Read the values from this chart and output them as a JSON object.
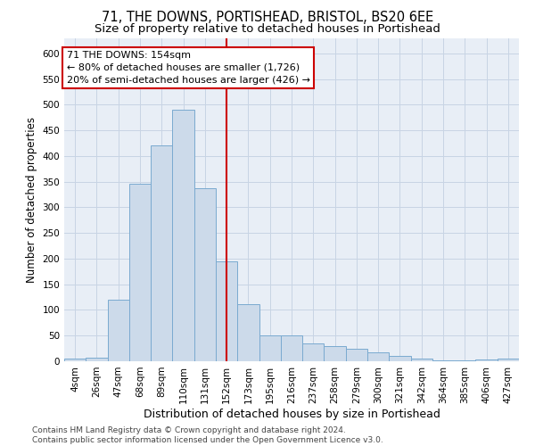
{
  "title1": "71, THE DOWNS, PORTISHEAD, BRISTOL, BS20 6EE",
  "title2": "Size of property relative to detached houses in Portishead",
  "xlabel": "Distribution of detached houses by size in Portishead",
  "ylabel": "Number of detached properties",
  "bar_labels": [
    "4sqm",
    "26sqm",
    "47sqm",
    "68sqm",
    "89sqm",
    "110sqm",
    "131sqm",
    "152sqm",
    "173sqm",
    "195sqm",
    "216sqm",
    "237sqm",
    "258sqm",
    "279sqm",
    "300sqm",
    "321sqm",
    "342sqm",
    "364sqm",
    "385sqm",
    "406sqm",
    "427sqm"
  ],
  "bar_values": [
    5,
    7,
    120,
    345,
    420,
    490,
    338,
    195,
    112,
    50,
    50,
    34,
    30,
    25,
    18,
    10,
    5,
    2,
    2,
    4,
    5
  ],
  "bar_color": "#ccdaea",
  "bar_edge_color": "#7aaad0",
  "vline_x_index": 7,
  "vline_color": "#cc0000",
  "annotation_line1": "71 THE DOWNS: 154sqm",
  "annotation_line2": "← 80% of detached houses are smaller (1,726)",
  "annotation_line3": "20% of semi-detached houses are larger (426) →",
  "annotation_box_color": "white",
  "annotation_box_edge": "#cc0000",
  "ylim": [
    0,
    630
  ],
  "yticks": [
    0,
    50,
    100,
    150,
    200,
    250,
    300,
    350,
    400,
    450,
    500,
    550,
    600
  ],
  "grid_color": "#c8d4e4",
  "background_color": "#e8eef6",
  "footer_text": "Contains HM Land Registry data © Crown copyright and database right 2024.\nContains public sector information licensed under the Open Government Licence v3.0.",
  "title1_fontsize": 10.5,
  "title2_fontsize": 9.5,
  "xlabel_fontsize": 9,
  "ylabel_fontsize": 8.5,
  "tick_fontsize": 7.5,
  "annotation_fontsize": 8,
  "footer_fontsize": 6.5
}
